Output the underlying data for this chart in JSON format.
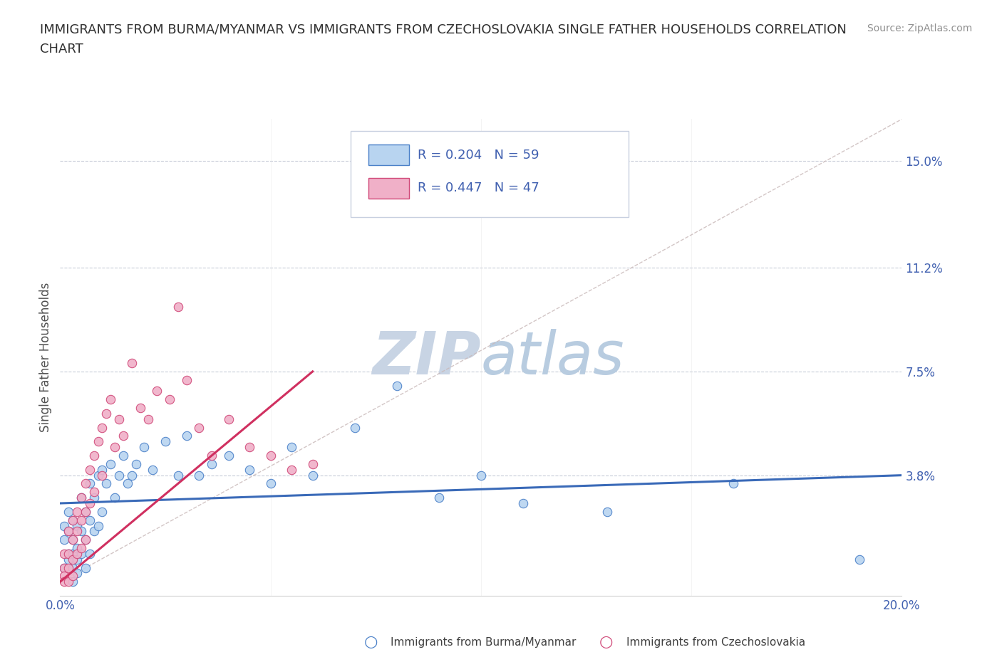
{
  "title_line1": "IMMIGRANTS FROM BURMA/MYANMAR VS IMMIGRANTS FROM CZECHOSLOVAKIA SINGLE FATHER HOUSEHOLDS CORRELATION",
  "title_line2": "CHART",
  "source_text": "Source: ZipAtlas.com",
  "ylabel": "Single Father Households",
  "xmin": 0.0,
  "xmax": 0.2,
  "ymin": -0.005,
  "ymax": 0.165,
  "ytick_vals": [
    0.0,
    0.038,
    0.075,
    0.112,
    0.15
  ],
  "ytick_labels": [
    "",
    "3.8%",
    "7.5%",
    "11.2%",
    "15.0%"
  ],
  "xtick_vals": [
    0.0,
    0.05,
    0.1,
    0.15,
    0.2
  ],
  "xtick_labels": [
    "0.0%",
    "",
    "",
    "",
    "20.0%"
  ],
  "blue_fill": "#b8d4f0",
  "blue_edge": "#4a80c8",
  "pink_fill": "#f0b0c8",
  "pink_edge": "#d04878",
  "blue_line": "#3a6ab8",
  "pink_line": "#d03060",
  "ref_line_color": "#c8b8b8",
  "grid_color": "#c8ccd8",
  "watermark_color": "#d8e4f0",
  "r_blue": 0.204,
  "n_blue": 59,
  "r_pink": 0.447,
  "n_pink": 47,
  "blue_scatter_x": [
    0.001,
    0.001,
    0.001,
    0.002,
    0.002,
    0.002,
    0.002,
    0.003,
    0.003,
    0.003,
    0.003,
    0.003,
    0.004,
    0.004,
    0.004,
    0.004,
    0.005,
    0.005,
    0.005,
    0.006,
    0.006,
    0.006,
    0.007,
    0.007,
    0.007,
    0.008,
    0.008,
    0.009,
    0.009,
    0.01,
    0.01,
    0.011,
    0.012,
    0.013,
    0.014,
    0.015,
    0.016,
    0.017,
    0.018,
    0.02,
    0.022,
    0.025,
    0.028,
    0.03,
    0.033,
    0.036,
    0.04,
    0.045,
    0.05,
    0.055,
    0.06,
    0.07,
    0.08,
    0.09,
    0.1,
    0.11,
    0.13,
    0.16,
    0.19
  ],
  "blue_scatter_y": [
    0.02,
    0.015,
    0.005,
    0.025,
    0.01,
    0.018,
    0.008,
    0.022,
    0.015,
    0.01,
    0.005,
    0.0,
    0.02,
    0.012,
    0.008,
    0.003,
    0.03,
    0.018,
    0.01,
    0.025,
    0.015,
    0.005,
    0.035,
    0.022,
    0.01,
    0.03,
    0.018,
    0.038,
    0.02,
    0.04,
    0.025,
    0.035,
    0.042,
    0.03,
    0.038,
    0.045,
    0.035,
    0.038,
    0.042,
    0.048,
    0.04,
    0.05,
    0.038,
    0.052,
    0.038,
    0.042,
    0.045,
    0.04,
    0.035,
    0.048,
    0.038,
    0.055,
    0.07,
    0.03,
    0.038,
    0.028,
    0.025,
    0.035,
    0.008
  ],
  "pink_scatter_x": [
    0.001,
    0.001,
    0.001,
    0.001,
    0.002,
    0.002,
    0.002,
    0.002,
    0.003,
    0.003,
    0.003,
    0.003,
    0.004,
    0.004,
    0.004,
    0.005,
    0.005,
    0.005,
    0.006,
    0.006,
    0.006,
    0.007,
    0.007,
    0.008,
    0.008,
    0.009,
    0.01,
    0.01,
    0.011,
    0.012,
    0.013,
    0.014,
    0.015,
    0.017,
    0.019,
    0.021,
    0.023,
    0.026,
    0.028,
    0.03,
    0.033,
    0.036,
    0.04,
    0.045,
    0.05,
    0.055,
    0.06
  ],
  "pink_scatter_y": [
    0.01,
    0.005,
    0.002,
    0.0,
    0.018,
    0.01,
    0.005,
    0.0,
    0.022,
    0.015,
    0.008,
    0.002,
    0.025,
    0.018,
    0.01,
    0.03,
    0.022,
    0.012,
    0.035,
    0.025,
    0.015,
    0.04,
    0.028,
    0.045,
    0.032,
    0.05,
    0.055,
    0.038,
    0.06,
    0.065,
    0.048,
    0.058,
    0.052,
    0.078,
    0.062,
    0.058,
    0.068,
    0.065,
    0.098,
    0.072,
    0.055,
    0.045,
    0.058,
    0.048,
    0.045,
    0.04,
    0.042
  ],
  "legend_label_blue": "Immigrants from Burma/Myanmar",
  "legend_label_pink": "Immigrants from Czechoslovakia",
  "axis_label_color": "#4060b0",
  "title_color": "#303030"
}
